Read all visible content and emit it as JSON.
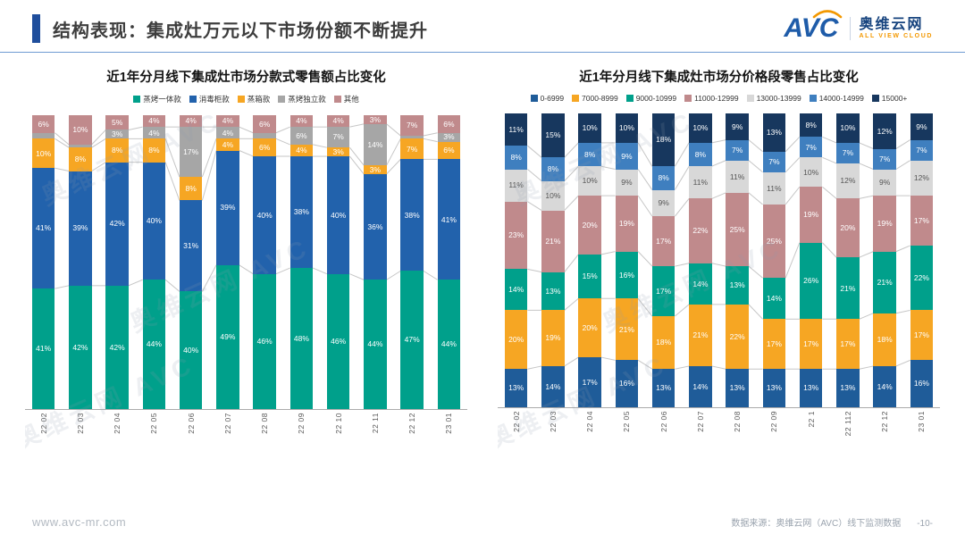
{
  "header": {
    "title": "结构表现：集成灶万元以下市场份额不断提升",
    "logo": {
      "wordmark": "AVC",
      "name": "奥维云网",
      "tagline": "ALL VIEW CLOUD"
    }
  },
  "watermark": {
    "text": "奥维云网 AVC"
  },
  "footer": {
    "website": "www.avc-mr.com",
    "source": "数据来源：奥维云网（AVC）线下监测数据",
    "page": "-10-"
  },
  "chart_data": [
    {
      "type": "bar",
      "variant": "stacked-percent",
      "title": "近1年分月线下集成灶市场分款式零售额占比变化",
      "unit": "%",
      "ylim": [
        0,
        100
      ],
      "label_min": 3,
      "legend_position": "top",
      "grid": false,
      "categories": [
        "22 02",
        "22 03",
        "22 04",
        "22 05",
        "22 06",
        "22 07",
        "22 08",
        "22 09",
        "22 10",
        "22 11",
        "22 12",
        "23 01"
      ],
      "series": [
        {
          "name": "蒸烤一体款",
          "color": "#00A08B",
          "label_color": "#FFFFFF",
          "values": [
            41,
            42,
            42,
            44,
            40,
            49,
            46,
            48,
            46,
            44,
            47,
            44
          ]
        },
        {
          "name": "消毒柜款",
          "color": "#2262AC",
          "label_color": "#FFFFFF",
          "values": [
            41,
            39,
            42,
            40,
            31,
            39,
            40,
            38,
            40,
            36,
            38,
            41
          ]
        },
        {
          "name": "蒸箱款",
          "color": "#F6A623",
          "label_color": "#FFFFFF",
          "values": [
            10,
            8,
            8,
            8,
            8,
            4,
            6,
            4,
            3,
            3,
            7,
            6
          ]
        },
        {
          "name": "蒸烤独立款",
          "color": "#A6A6A6",
          "label_color": "#FFFFFF",
          "values": [
            2,
            1,
            3,
            4,
            17,
            4,
            2,
            6,
            7,
            14,
            1,
            3
          ]
        },
        {
          "name": "其他",
          "color": "#C08A8C",
          "label_color": "#FFFFFF",
          "values": [
            6,
            10,
            5,
            4,
            4,
            4,
            6,
            4,
            4,
            3,
            7,
            6
          ]
        }
      ]
    },
    {
      "type": "bar",
      "variant": "stacked-percent",
      "title": "近1年分月线下集成灶市场分价格段零售占比变化",
      "unit": "%",
      "ylim": [
        0,
        100
      ],
      "label_min": 3,
      "legend_position": "top",
      "grid": false,
      "categories": [
        "22 02",
        "22 03",
        "22 04",
        "22 05",
        "22 06",
        "22 07",
        "22 08",
        "22 09",
        "22 1",
        "22 112",
        "22 12",
        "23 01"
      ],
      "series": [
        {
          "name": "0-6999",
          "color": "#1F5C99",
          "label_color": "#FFFFFF",
          "values": [
            13,
            14,
            17,
            16,
            13,
            14,
            13,
            13,
            13,
            13,
            14,
            16
          ]
        },
        {
          "name": "7000-8999",
          "color": "#F6A623",
          "label_color": "#FFFFFF",
          "values": [
            20,
            19,
            20,
            21,
            18,
            21,
            22,
            17,
            17,
            17,
            18,
            17
          ]
        },
        {
          "name": "9000-10999",
          "color": "#00A08B",
          "label_color": "#FFFFFF",
          "values": [
            14,
            13,
            15,
            16,
            17,
            14,
            13,
            14,
            26,
            21,
            21,
            22
          ]
        },
        {
          "name": "11000-12999",
          "color": "#C08A8C",
          "label_color": "#FFFFFF",
          "values": [
            23,
            21,
            20,
            19,
            17,
            22,
            25,
            25,
            19,
            20,
            19,
            17
          ]
        },
        {
          "name": "13000-13999",
          "color": "#D8D8D8",
          "label_color": "#555555",
          "values": [
            11,
            10,
            10,
            9,
            9,
            11,
            11,
            11,
            10,
            12,
            9,
            12
          ]
        },
        {
          "name": "14000-14999",
          "color": "#3F7FBF",
          "label_color": "#FFFFFF",
          "values": [
            8,
            8,
            8,
            9,
            8,
            8,
            7,
            7,
            7,
            7,
            7,
            7
          ]
        },
        {
          "name": "15000+",
          "color": "#17375E",
          "label_color": "#FFFFFF",
          "values": [
            11,
            15,
            10,
            10,
            18,
            10,
            9,
            13,
            8,
            10,
            12,
            9
          ]
        }
      ]
    }
  ]
}
